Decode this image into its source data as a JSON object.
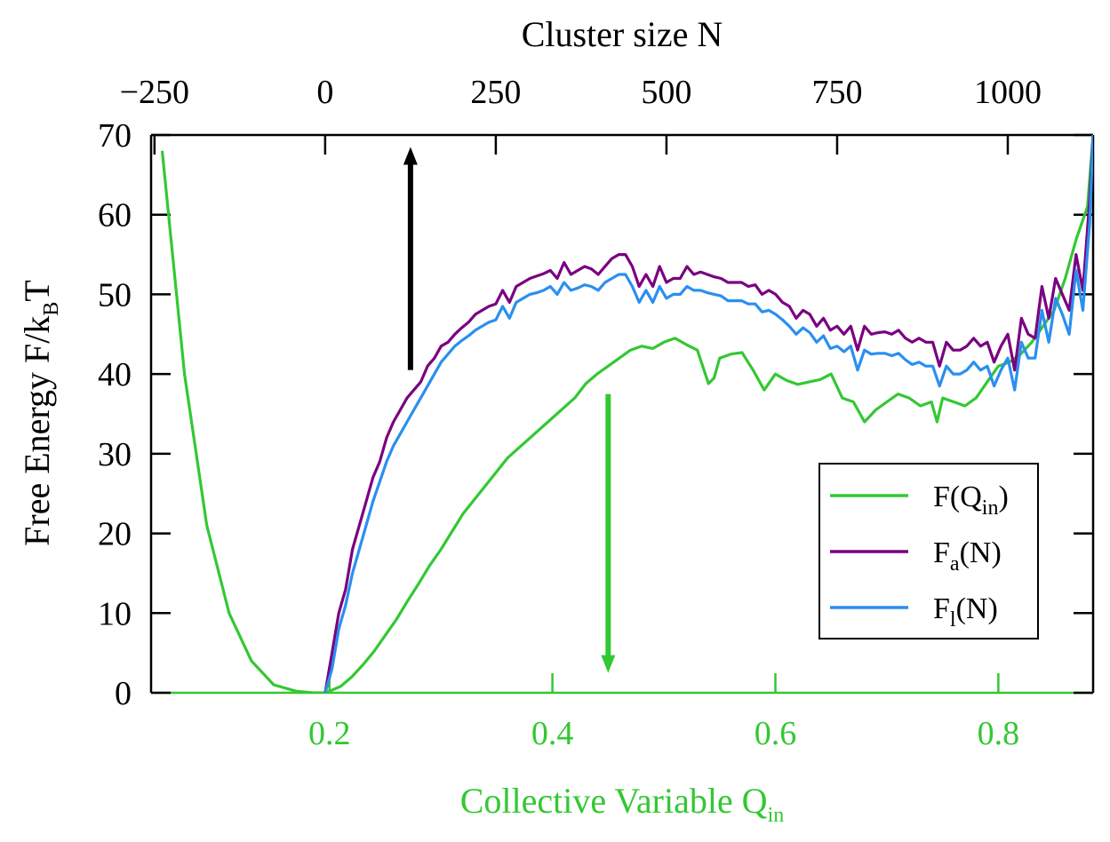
{
  "chart_data": {
    "type": "line",
    "title": "",
    "top_axis": {
      "label": "Cluster size N",
      "ticks": [
        -250,
        0,
        250,
        500,
        750,
        1000
      ],
      "tick_labels": [
        "−250",
        "0",
        "250",
        "500",
        "750",
        "1000"
      ],
      "range": [
        -255,
        1125
      ]
    },
    "bottom_axis": {
      "label_main": "Collective Variable Q",
      "label_sub": "in",
      "ticks": [
        0.2,
        0.4,
        0.6,
        0.8
      ],
      "tick_labels": [
        "0.2",
        "0.4",
        "0.6",
        "0.8"
      ],
      "range": [
        0.04,
        0.885
      ]
    },
    "y_axis": {
      "label_main": "Free Energy   F/k",
      "label_sub": "B",
      "label_tail": "T",
      "ticks": [
        0,
        10,
        20,
        30,
        40,
        50,
        60,
        70
      ],
      "tick_labels": [
        "0",
        "10",
        "20",
        "30",
        "40",
        "50",
        "60",
        "70"
      ],
      "range": [
        0,
        70
      ]
    },
    "legend": {
      "position": "lower-right",
      "entries": [
        {
          "main": "F(Q",
          "sub": "in",
          "tail": ")",
          "color": "#33c833"
        },
        {
          "main": "F",
          "sub": "a",
          "tail": "(N)",
          "color": "#7a0080"
        },
        {
          "main": "F",
          "sub": "l",
          "tail": "(N)",
          "color": "#2a8ff0"
        }
      ]
    },
    "series": [
      {
        "name": "F(Qin)",
        "axis": "bottom",
        "color": "#33c833",
        "x": [
          0.05,
          0.07,
          0.09,
          0.11,
          0.13,
          0.15,
          0.17,
          0.185,
          0.195,
          0.2,
          0.21,
          0.22,
          0.23,
          0.24,
          0.25,
          0.26,
          0.27,
          0.28,
          0.29,
          0.3,
          0.32,
          0.34,
          0.36,
          0.38,
          0.4,
          0.42,
          0.43,
          0.44,
          0.45,
          0.46,
          0.47,
          0.48,
          0.49,
          0.5,
          0.51,
          0.52,
          0.53,
          0.54,
          0.545,
          0.55,
          0.56,
          0.57,
          0.58,
          0.59,
          0.6,
          0.61,
          0.62,
          0.63,
          0.64,
          0.65,
          0.66,
          0.67,
          0.68,
          0.69,
          0.7,
          0.71,
          0.72,
          0.73,
          0.74,
          0.745,
          0.75,
          0.76,
          0.77,
          0.78,
          0.79,
          0.8,
          0.81,
          0.82,
          0.83,
          0.84,
          0.85,
          0.86,
          0.87,
          0.88,
          0.885
        ],
        "y": [
          68,
          40,
          21,
          10,
          4,
          1,
          0.2,
          0,
          0,
          0.2,
          0.8,
          2,
          3.5,
          5.2,
          7.2,
          9.2,
          11.5,
          13.7,
          16,
          18,
          22.5,
          26,
          29.5,
          32,
          34.5,
          37,
          38.8,
          40,
          41,
          42,
          43,
          43.5,
          43.2,
          44,
          44.5,
          43.7,
          43,
          38.8,
          39.5,
          42,
          42.5,
          42.7,
          40.5,
          38,
          40,
          39.2,
          38.7,
          39,
          39.3,
          40,
          37,
          36.5,
          34,
          35.5,
          36.5,
          37.5,
          37,
          36,
          36.5,
          34,
          37,
          36.5,
          36,
          37,
          39,
          41,
          41.5,
          42.5,
          44,
          46,
          48,
          52,
          57,
          61,
          70
        ]
      },
      {
        "name": "Fa(N)",
        "axis": "top",
        "color": "#7a0080",
        "x": [
          0,
          10,
          20,
          30,
          40,
          50,
          60,
          70,
          80,
          90,
          100,
          110,
          120,
          130,
          140,
          150,
          160,
          170,
          180,
          190,
          200,
          210,
          220,
          230,
          240,
          250,
          260,
          270,
          280,
          290,
          300,
          310,
          320,
          330,
          340,
          350,
          360,
          370,
          380,
          390,
          400,
          410,
          420,
          430,
          440,
          450,
          460,
          470,
          480,
          490,
          500,
          510,
          520,
          530,
          540,
          550,
          560,
          570,
          580,
          590,
          600,
          610,
          620,
          630,
          640,
          650,
          660,
          670,
          680,
          690,
          700,
          710,
          720,
          730,
          740,
          750,
          760,
          770,
          780,
          790,
          800,
          810,
          820,
          830,
          840,
          850,
          860,
          870,
          880,
          890,
          900,
          910,
          920,
          930,
          940,
          950,
          960,
          970,
          980,
          990,
          1000,
          1010,
          1020,
          1030,
          1040,
          1050,
          1060,
          1070,
          1080,
          1090,
          1100,
          1110,
          1120,
          1125
        ],
        "y": [
          0,
          5,
          10,
          13,
          18,
          21,
          24,
          27,
          29,
          32,
          34,
          35.5,
          37,
          38,
          39,
          41,
          42,
          43.5,
          44,
          45,
          45.8,
          46.5,
          47.5,
          48,
          48.5,
          48.8,
          50.5,
          49,
          51,
          51.5,
          52,
          52.3,
          52.6,
          53,
          52,
          54,
          52.5,
          53,
          53.5,
          53.2,
          52.5,
          53.5,
          54.5,
          55,
          55,
          53.5,
          51,
          52.5,
          51,
          53.5,
          51.5,
          52,
          52,
          53.5,
          52.5,
          52.8,
          52.5,
          52.2,
          52,
          51.5,
          51.5,
          51.5,
          51,
          51.2,
          50,
          50.5,
          50,
          49,
          48.5,
          47,
          48,
          47.5,
          46,
          47,
          45.5,
          46,
          45,
          46,
          43,
          46,
          45,
          45.2,
          45.3,
          45,
          45.5,
          44.5,
          44,
          44.5,
          44,
          44,
          41,
          44,
          43,
          43,
          43.5,
          44.5,
          43.5,
          44,
          41.5,
          43.5,
          45,
          40.5,
          47,
          45,
          44.5,
          51,
          47,
          52,
          50,
          48,
          55,
          50.5,
          62,
          70
        ]
      },
      {
        "name": "Fl(N)",
        "axis": "top",
        "color": "#2a8ff0",
        "x": [
          0,
          10,
          20,
          30,
          40,
          50,
          60,
          70,
          80,
          90,
          100,
          110,
          120,
          130,
          140,
          150,
          160,
          170,
          180,
          190,
          200,
          210,
          220,
          230,
          240,
          250,
          260,
          270,
          280,
          290,
          300,
          310,
          320,
          330,
          340,
          350,
          360,
          370,
          380,
          390,
          400,
          410,
          420,
          430,
          440,
          450,
          460,
          470,
          480,
          490,
          500,
          510,
          520,
          530,
          540,
          550,
          560,
          570,
          580,
          590,
          600,
          610,
          620,
          630,
          640,
          650,
          660,
          670,
          680,
          690,
          700,
          710,
          720,
          730,
          740,
          750,
          760,
          770,
          780,
          790,
          800,
          810,
          820,
          830,
          840,
          850,
          860,
          870,
          880,
          890,
          900,
          910,
          920,
          930,
          940,
          950,
          960,
          970,
          980,
          990,
          1000,
          1010,
          1020,
          1030,
          1040,
          1050,
          1060,
          1070,
          1080,
          1090,
          1100,
          1110,
          1120,
          1125
        ],
        "y": [
          0,
          3,
          8,
          11,
          15,
          18,
          21,
          24,
          26.5,
          29,
          31,
          32.5,
          34,
          35.5,
          37,
          38.5,
          40,
          41.5,
          42.5,
          43.5,
          44.2,
          44.8,
          45.5,
          46,
          46.5,
          46.8,
          48.5,
          47,
          49,
          49.5,
          50,
          50.2,
          50.5,
          51,
          50,
          51.5,
          50.5,
          50.8,
          51.2,
          51,
          50.5,
          51.5,
          52,
          52.5,
          52.5,
          51,
          49,
          50.5,
          49,
          51,
          49.5,
          50,
          50,
          51,
          50.5,
          50.5,
          50.2,
          50,
          49.8,
          49.2,
          49.2,
          49.2,
          48.8,
          48.8,
          47.8,
          48,
          47.5,
          46.8,
          46,
          45,
          45.8,
          45.2,
          44,
          44.8,
          43.2,
          43.5,
          42.8,
          43.5,
          40.5,
          43,
          42.5,
          42.6,
          42.6,
          42.3,
          42.6,
          41.8,
          41.2,
          41.5,
          41,
          41,
          38.5,
          41,
          40,
          40,
          40.5,
          41.5,
          40.5,
          41,
          38.5,
          40.5,
          42,
          38,
          44,
          42,
          42,
          48,
          44,
          49.5,
          47.5,
          45,
          53,
          48,
          59,
          70
        ]
      }
    ],
    "annotations": [
      {
        "type": "arrow",
        "direction": "up",
        "color": "#000000",
        "axis": "top",
        "x": 125,
        "y_from": 40.5,
        "y_to": 68.5
      },
      {
        "type": "arrow",
        "direction": "down",
        "color": "#33c833",
        "axis": "bottom",
        "x": 0.45,
        "y_from": 37.5,
        "y_to": 2.5
      }
    ]
  }
}
